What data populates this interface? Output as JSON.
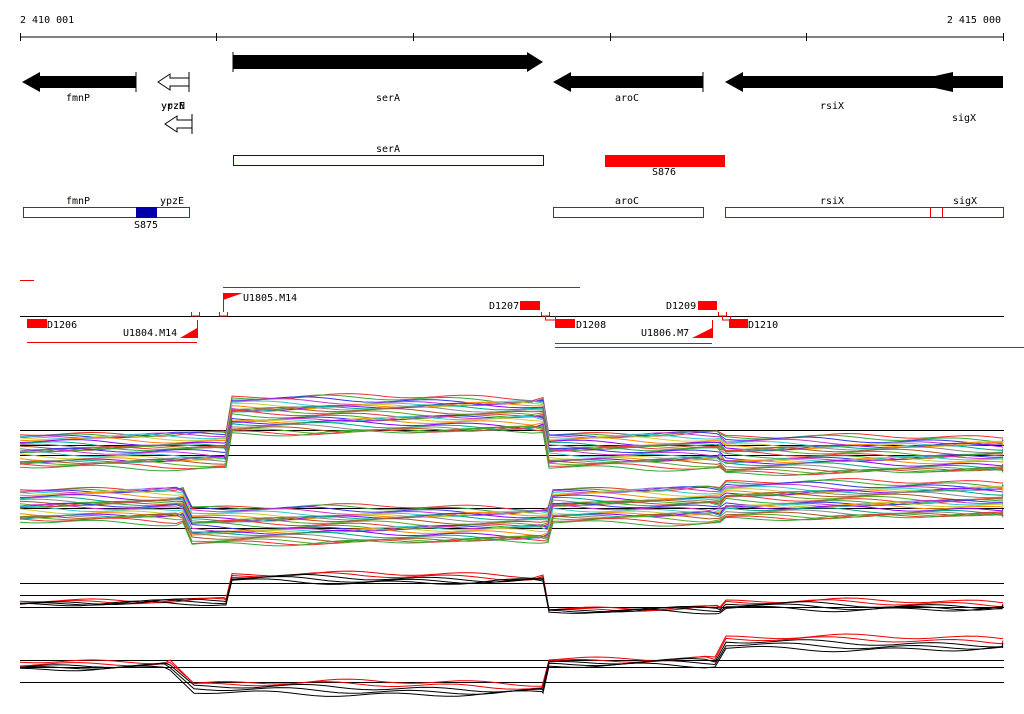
{
  "ruler": {
    "start": "2 410 001",
    "end": "2 415 000"
  },
  "genes": [
    {
      "label": "fmnP"
    },
    {
      "label": "ypzE"
    },
    {
      "label": "yrzN"
    },
    {
      "label": "serA"
    },
    {
      "label": "aroC"
    },
    {
      "label": "rsiX"
    },
    {
      "label": "sigX"
    }
  ],
  "transcripts": [
    {
      "label": "serA"
    },
    {
      "label": "S876"
    }
  ],
  "operons": [
    {
      "label": "fmnP"
    },
    {
      "label": "ypzE"
    },
    {
      "label": "S875"
    },
    {
      "label": "aroC"
    },
    {
      "label": "rsiX"
    },
    {
      "label": "sigX"
    }
  ],
  "features": [
    {
      "label": "D1206"
    },
    {
      "label": "U1804.M14"
    },
    {
      "label": "U1805.M14"
    },
    {
      "label": "D1207"
    },
    {
      "label": "D1208"
    },
    {
      "label": "D1209"
    },
    {
      "label": "U1806.M7"
    },
    {
      "label": "D1210"
    }
  ]
}
